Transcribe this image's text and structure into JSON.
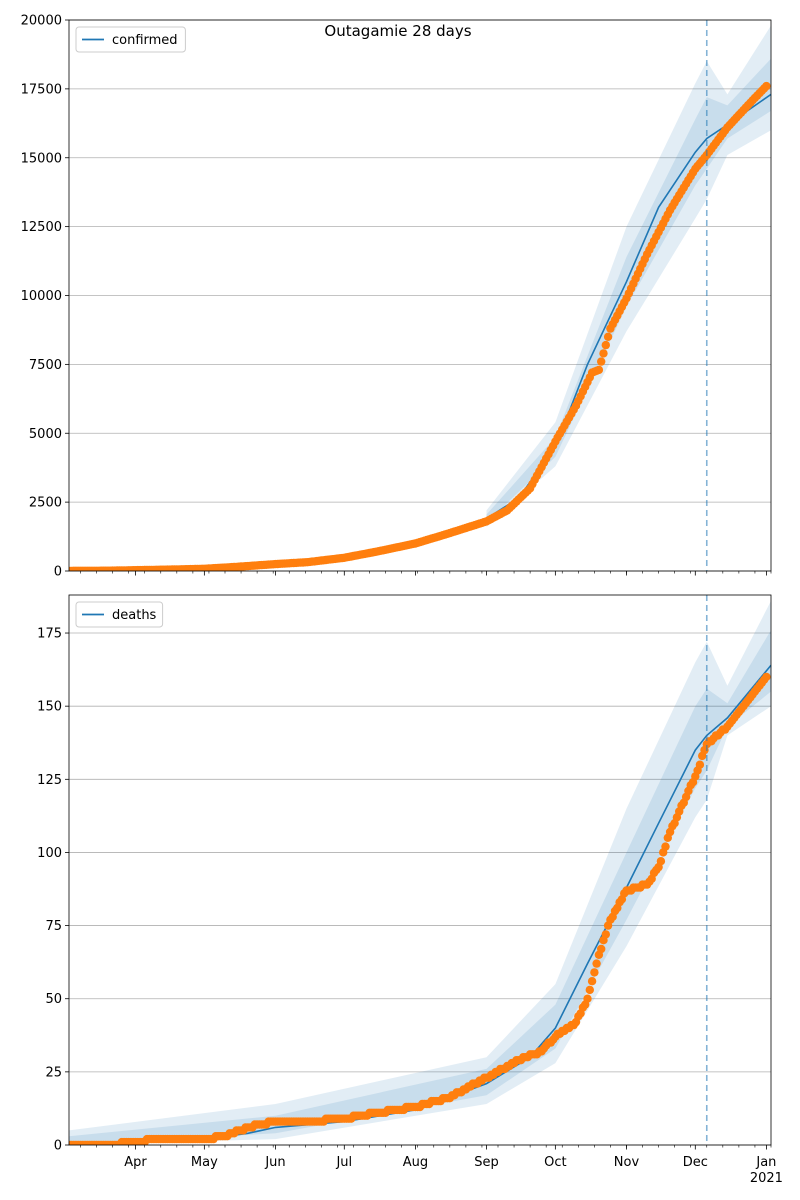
{
  "figure": {
    "title": "Outagamie 28 days",
    "xtick_labels": [
      "Apr",
      "May",
      "Jun",
      "Jul",
      "Aug",
      "Sep",
      "Oct",
      "Nov",
      "Dec",
      "Jan"
    ],
    "xtick_dates": [
      "2020-04-01",
      "2020-05-01",
      "2020-06-01",
      "2020-07-01",
      "2020-08-01",
      "2020-09-01",
      "2020-10-01",
      "2020-11-01",
      "2020-12-01",
      "2021-01-01"
    ],
    "year_label": "2021",
    "xlim": [
      "2020-03-03",
      "2021-01-03"
    ],
    "forecast_start": "2020-12-06"
  },
  "colors": {
    "line": "#1f77b4",
    "band": "#1f77b4",
    "points": "#ff7f0e",
    "grid": "#b0b0b0",
    "vline": "#1f77b4"
  },
  "chart_data": [
    {
      "type": "line",
      "panel": "confirmed",
      "legend": [
        "confirmed"
      ],
      "legend_position": "upper-left",
      "grid": "horizontal",
      "ylim": [
        0,
        20000
      ],
      "yticks": [
        0,
        2500,
        5000,
        7500,
        10000,
        12500,
        15000,
        17500,
        20000
      ],
      "series": [
        {
          "name": "confirmed",
          "kind": "model-line",
          "x": [
            "2020-03-03",
            "2020-04-01",
            "2020-05-01",
            "2020-06-01",
            "2020-07-01",
            "2020-08-01",
            "2020-08-15",
            "2020-09-01",
            "2020-09-15",
            "2020-10-01",
            "2020-10-15",
            "2020-11-01",
            "2020-11-15",
            "2020-12-01",
            "2020-12-06",
            "2020-12-15",
            "2021-01-03"
          ],
          "y": [
            0,
            20,
            70,
            230,
            500,
            1050,
            1400,
            1900,
            2650,
            4500,
            7500,
            10500,
            13200,
            15200,
            15700,
            16200,
            17300
          ]
        },
        {
          "name": "observed",
          "kind": "observed-points",
          "x": [
            "2020-03-03",
            "2020-03-20",
            "2020-04-01",
            "2020-04-15",
            "2020-05-01",
            "2020-05-15",
            "2020-06-01",
            "2020-06-15",
            "2020-07-01",
            "2020-07-15",
            "2020-08-01",
            "2020-08-15",
            "2020-09-01",
            "2020-09-10",
            "2020-09-20",
            "2020-10-01",
            "2020-10-10",
            "2020-10-17",
            "2020-10-20",
            "2020-10-25",
            "2020-11-01",
            "2020-11-10",
            "2020-11-20",
            "2020-12-01",
            "2020-12-06",
            "2020-12-15",
            "2020-12-25",
            "2021-01-01"
          ],
          "y": [
            5,
            10,
            30,
            50,
            80,
            150,
            250,
            320,
            480,
            700,
            1000,
            1350,
            1800,
            2200,
            3000,
            4700,
            6000,
            7200,
            7300,
            8800,
            9900,
            11500,
            13100,
            14600,
            15100,
            16100,
            17000,
            17600
          ]
        }
      ],
      "uncertainty_bands": [
        {
          "x": [
            "2020-09-01",
            "2020-10-01",
            "2020-11-01",
            "2020-12-01",
            "2020-12-06",
            "2020-12-15",
            "2021-01-03"
          ],
          "lower": [
            1600,
            3800,
            8700,
            12800,
            13500,
            15100,
            16000
          ],
          "upper": [
            2200,
            5400,
            12500,
            17700,
            18500,
            17300,
            19800
          ]
        },
        {
          "x": [
            "2020-09-01",
            "2020-10-01",
            "2020-11-01",
            "2020-12-01",
            "2020-12-06",
            "2020-12-15",
            "2021-01-03"
          ],
          "lower": [
            1750,
            4150,
            9600,
            14000,
            14600,
            15700,
            16700
          ],
          "upper": [
            2050,
            4850,
            11400,
            16400,
            17200,
            16900,
            18600
          ]
        }
      ]
    },
    {
      "type": "line",
      "panel": "deaths",
      "legend": [
        "deaths"
      ],
      "legend_position": "upper-left",
      "grid": "horizontal",
      "ylim": [
        0,
        188
      ],
      "yticks": [
        0,
        25,
        50,
        75,
        100,
        125,
        150,
        175
      ],
      "series": [
        {
          "name": "deaths",
          "kind": "model-line",
          "x": [
            "2020-03-03",
            "2020-04-01",
            "2020-05-01",
            "2020-05-20",
            "2020-06-01",
            "2020-07-01",
            "2020-08-01",
            "2020-09-01",
            "2020-09-20",
            "2020-10-01",
            "2020-10-15",
            "2020-11-01",
            "2020-11-15",
            "2020-12-01",
            "2020-12-06",
            "2020-12-15",
            "2021-01-03"
          ],
          "y": [
            0,
            1,
            2,
            4,
            6,
            8,
            12,
            21,
            30,
            40,
            62,
            88,
            110,
            135,
            140,
            146,
            164
          ]
        },
        {
          "name": "observed",
          "kind": "observed-points",
          "x": [
            "2020-03-03",
            "2020-03-20",
            "2020-04-01",
            "2020-04-10",
            "2020-05-01",
            "2020-05-10",
            "2020-05-20",
            "2020-06-01",
            "2020-06-15",
            "2020-07-01",
            "2020-07-15",
            "2020-08-01",
            "2020-08-15",
            "2020-09-01",
            "2020-09-15",
            "2020-09-25",
            "2020-10-01",
            "2020-10-10",
            "2020-10-15",
            "2020-10-20",
            "2020-10-25",
            "2020-11-01",
            "2020-11-10",
            "2020-11-15",
            "2020-11-20",
            "2020-12-01",
            "2020-12-06",
            "2020-12-15",
            "2020-12-25",
            "2021-01-01"
          ],
          "y": [
            0,
            0,
            1,
            2,
            2,
            3,
            6,
            8,
            8,
            9,
            11,
            13,
            16,
            23,
            29,
            32,
            37,
            42,
            50,
            65,
            77,
            87,
            89,
            95,
            107,
            126,
            137,
            143,
            153,
            160
          ]
        }
      ],
      "uncertainty_bands": [
        {
          "x": [
            "2020-03-03",
            "2020-06-01",
            "2020-09-01",
            "2020-10-01",
            "2020-11-01",
            "2020-12-01",
            "2020-12-06",
            "2020-12-15",
            "2021-01-03"
          ],
          "lower": [
            0,
            2,
            14,
            28,
            68,
            112,
            118,
            140,
            150
          ],
          "upper": [
            5,
            14,
            30,
            55,
            115,
            165,
            172,
            157,
            186
          ]
        },
        {
          "x": [
            "2020-03-03",
            "2020-06-01",
            "2020-09-01",
            "2020-10-01",
            "2020-11-01",
            "2020-12-01",
            "2020-12-06",
            "2020-12-15",
            "2021-01-03"
          ],
          "lower": [
            0,
            4,
            17,
            33,
            77,
            122,
            128,
            143,
            155
          ],
          "upper": [
            3,
            10,
            26,
            48,
            100,
            150,
            156,
            151,
            176
          ]
        }
      ]
    }
  ]
}
